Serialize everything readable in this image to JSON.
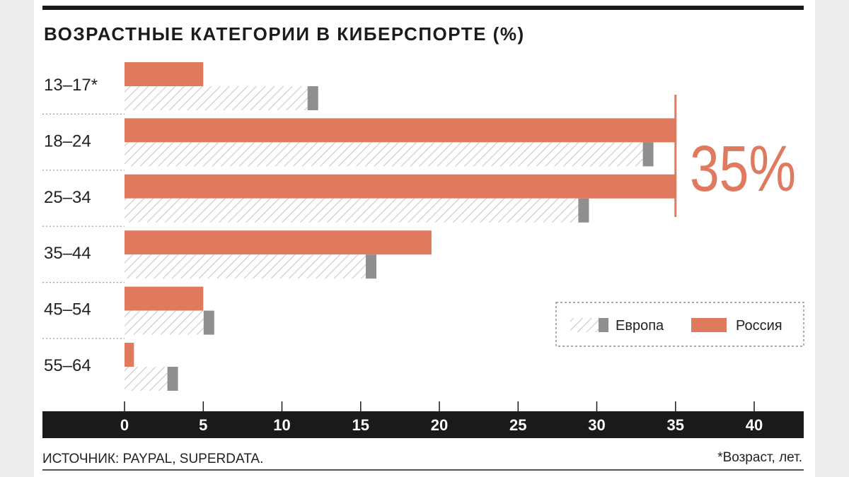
{
  "chart_data": {
    "type": "bar",
    "orientation": "horizontal",
    "title": "ВОЗРАСТНЫЕ КАТЕГОРИИ В КИБЕРСПОРТЕ (%)",
    "categories": [
      "13–17*",
      "18–24",
      "25–34",
      "35–44",
      "45–54",
      "55–64"
    ],
    "series": [
      {
        "name": "Россия",
        "values": [
          5,
          35,
          35,
          19.5,
          5,
          0.6
        ],
        "color": "#e07a5f"
      },
      {
        "name": "Европа",
        "values": [
          12.3,
          33.6,
          29.5,
          16,
          5.7,
          3.4
        ],
        "color": "#8f8f8f"
      }
    ],
    "xticks": [
      0,
      5,
      10,
      15,
      20,
      25,
      30,
      35,
      40
    ],
    "xlim": [
      0,
      40
    ],
    "grid": false,
    "legend_position": "right",
    "annotation": "35%",
    "annotation_value": 35
  },
  "footer": {
    "source": "ИСТОЧНИК: PAYPAL, SUPERDATA.",
    "note": "*Возраст, лет."
  },
  "colors": {
    "russia": "#e07a5f",
    "europe_cap": "#8f8f8f",
    "europe_hatch": "#c8c8c8",
    "axis_band": "#1a1a1a",
    "rule": "#1a1a1a"
  }
}
